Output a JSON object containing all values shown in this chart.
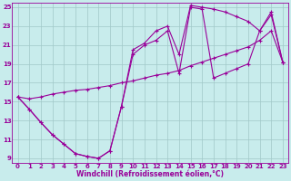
{
  "xlabel": "Windchill (Refroidissement éolien,°C)",
  "bg_color": "#c8ecec",
  "grid_color": "#a0c8c8",
  "line_color": "#990099",
  "xlim": [
    -0.5,
    23.5
  ],
  "ylim": [
    8.5,
    25.5
  ],
  "xticks": [
    0,
    1,
    2,
    3,
    4,
    5,
    6,
    7,
    8,
    9,
    10,
    11,
    12,
    13,
    14,
    15,
    16,
    17,
    18,
    19,
    20,
    21,
    22,
    23
  ],
  "yticks": [
    9,
    11,
    13,
    15,
    17,
    19,
    21,
    23,
    25
  ],
  "line1_x": [
    0,
    1,
    2,
    3,
    4,
    5,
    6,
    7,
    8,
    9,
    10,
    11,
    12,
    13,
    14,
    15,
    16,
    17,
    18,
    19,
    20,
    21,
    22,
    23
  ],
  "line1_y": [
    15.5,
    14.2,
    12.8,
    11.5,
    10.5,
    9.5,
    9.2,
    9.0,
    9.8,
    14.5,
    20.5,
    21.2,
    22.5,
    23.0,
    20.0,
    25.2,
    25.0,
    24.8,
    24.5,
    24.0,
    23.5,
    22.5,
    24.5,
    19.2
  ],
  "line2_x": [
    0,
    1,
    2,
    3,
    4,
    5,
    6,
    7,
    8,
    9,
    10,
    11,
    12,
    13,
    14,
    15,
    16,
    17,
    18,
    19,
    20,
    21,
    22,
    23
  ],
  "line2_y": [
    15.5,
    14.2,
    12.8,
    11.5,
    10.5,
    9.5,
    9.2,
    9.0,
    9.8,
    14.5,
    20.0,
    21.0,
    21.5,
    22.5,
    18.0,
    25.0,
    24.8,
    17.5,
    18.0,
    18.5,
    19.0,
    22.5,
    24.2,
    19.2
  ],
  "line3_x": [
    0,
    1,
    2,
    3,
    4,
    5,
    6,
    7,
    8,
    9,
    10,
    11,
    12,
    13,
    14,
    15,
    16,
    17,
    18,
    19,
    20,
    21,
    22,
    23
  ],
  "line3_y": [
    15.5,
    15.3,
    15.5,
    15.8,
    16.0,
    16.2,
    16.3,
    16.5,
    16.7,
    17.0,
    17.2,
    17.5,
    17.8,
    18.0,
    18.3,
    18.8,
    19.2,
    19.6,
    20.0,
    20.4,
    20.8,
    21.5,
    22.5,
    19.2
  ]
}
